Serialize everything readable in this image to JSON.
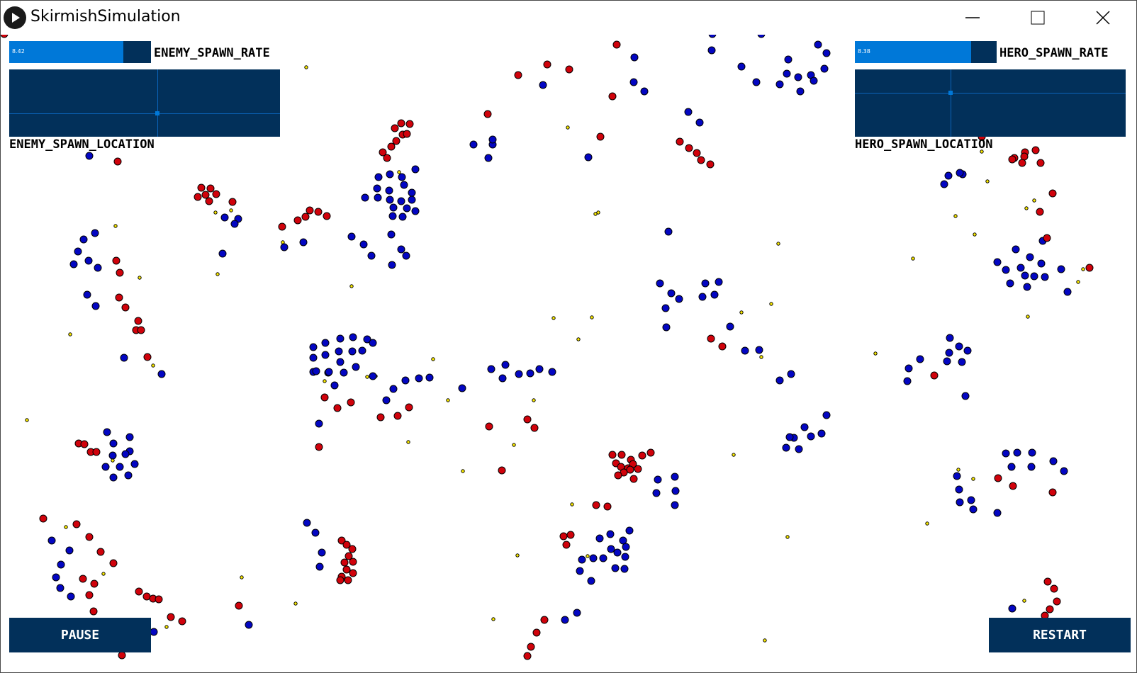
{
  "window": {
    "title": "SkirmishSimulation"
  },
  "colors": {
    "ui_dark": "#02305a",
    "ui_accent": "#0078d8",
    "enemy": "#d0020b",
    "hero": "#0306c2",
    "food": "#ffee00"
  },
  "controls": {
    "enemy_spawn_rate": {
      "label": "ENEMY_SPAWN_RATE",
      "value": "8.42",
      "fill": 0.81
    },
    "enemy_spawn_location": {
      "label": "ENEMY_SPAWN_LOCATION"
    },
    "hero_spawn_rate": {
      "label": "HERO_SPAWN_RATE",
      "value": "8.38",
      "fill": 0.82
    },
    "hero_spawn_location": {
      "label": "HERO_SPAWN_LOCATION"
    },
    "pause_label": "PAUSE",
    "restart_label": "RESTART"
  }
}
